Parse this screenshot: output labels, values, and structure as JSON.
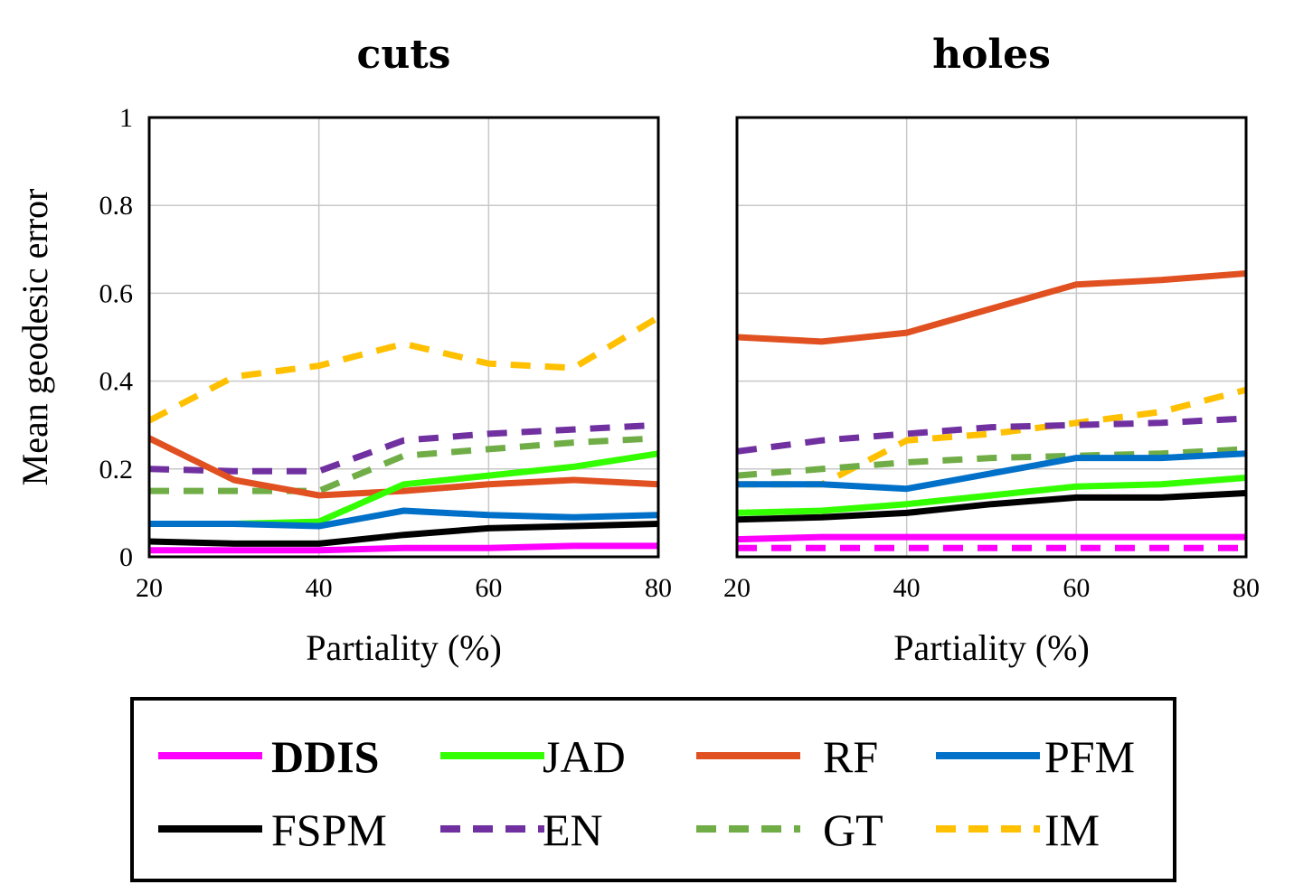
{
  "colors": {
    "DDIS": "#ff00ff",
    "JAD": "#33ff00",
    "RF": "#e05020",
    "PFM": "#0070c8",
    "FSPM": "#000000",
    "EN": "#7030a0",
    "GT": "#70ad47",
    "IM": "#ffc000"
  },
  "legend": {
    "items": [
      {
        "key": "DDIS",
        "label": "DDIS",
        "dashed": false,
        "bold": true
      },
      {
        "key": "JAD",
        "label": "JAD",
        "dashed": false,
        "bold": false
      },
      {
        "key": "RF",
        "label": "RF",
        "dashed": false,
        "bold": false
      },
      {
        "key": "PFM",
        "label": "PFM",
        "dashed": false,
        "bold": false
      },
      {
        "key": "FSPM",
        "label": "FSPM",
        "dashed": false,
        "bold": false
      },
      {
        "key": "EN",
        "label": "EN",
        "dashed": true,
        "bold": false
      },
      {
        "key": "GT",
        "label": "GT",
        "dashed": true,
        "bold": false
      },
      {
        "key": "IM",
        "label": "IM",
        "dashed": true,
        "bold": false
      }
    ]
  },
  "chart_data": [
    {
      "type": "line",
      "title": "cuts",
      "xlabel": "Partiality (%)",
      "ylabel": "Mean geodesic error",
      "xlim": [
        20,
        80
      ],
      "ylim": [
        0,
        1
      ],
      "xticks": [
        "20",
        "40",
        "60",
        "80"
      ],
      "yticks": [
        "0",
        "0.2",
        "0.4",
        "0.6",
        "0.8",
        "1"
      ],
      "grid": true,
      "x": [
        20,
        30,
        40,
        50,
        60,
        70,
        80
      ],
      "series": [
        {
          "name": "IM",
          "dashed": true,
          "values": [
            0.31,
            0.41,
            0.435,
            0.485,
            0.44,
            0.43,
            0.545
          ]
        },
        {
          "name": "EN",
          "dashed": true,
          "values": [
            0.2,
            0.195,
            0.195,
            0.265,
            0.28,
            0.29,
            0.3
          ]
        },
        {
          "name": "GT",
          "dashed": true,
          "values": [
            0.15,
            0.15,
            0.15,
            0.23,
            0.245,
            0.26,
            0.27
          ]
        },
        {
          "name": "RF",
          "dashed": false,
          "values": [
            0.27,
            0.175,
            0.14,
            0.15,
            0.165,
            0.175,
            0.165
          ]
        },
        {
          "name": "JAD",
          "dashed": false,
          "values": [
            0.075,
            0.075,
            0.08,
            0.165,
            0.185,
            0.205,
            0.235
          ]
        },
        {
          "name": "PFM",
          "dashed": false,
          "values": [
            0.075,
            0.075,
            0.07,
            0.105,
            0.095,
            0.09,
            0.095
          ]
        },
        {
          "name": "FSPM",
          "dashed": false,
          "values": [
            0.035,
            0.03,
            0.03,
            0.05,
            0.065,
            0.07,
            0.075
          ]
        },
        {
          "name": "DDIS",
          "dashed": false,
          "values": [
            0.015,
            0.015,
            0.015,
            0.02,
            0.02,
            0.025,
            0.025
          ]
        }
      ]
    },
    {
      "type": "line",
      "title": "holes",
      "xlabel": "Partiality (%)",
      "ylabel": "",
      "xlim": [
        20,
        80
      ],
      "ylim": [
        0,
        1
      ],
      "xticks": [
        "20",
        "40",
        "60",
        "80"
      ],
      "yticks": [],
      "grid": true,
      "x": [
        20,
        30,
        40,
        50,
        60,
        70,
        80
      ],
      "series": [
        {
          "name": "RF",
          "dashed": false,
          "values": [
            0.5,
            0.49,
            0.51,
            0.565,
            0.62,
            0.63,
            0.645
          ]
        },
        {
          "name": "IM",
          "dashed": true,
          "values": [
            0.165,
            0.165,
            0.265,
            0.28,
            0.305,
            0.33,
            0.38
          ]
        },
        {
          "name": "EN",
          "dashed": true,
          "values": [
            0.24,
            0.265,
            0.28,
            0.295,
            0.3,
            0.305,
            0.315
          ]
        },
        {
          "name": "GT",
          "dashed": true,
          "values": [
            0.185,
            0.2,
            0.215,
            0.225,
            0.23,
            0.235,
            0.245
          ]
        },
        {
          "name": "PFM",
          "dashed": false,
          "values": [
            0.165,
            0.165,
            0.155,
            0.19,
            0.225,
            0.225,
            0.235
          ]
        },
        {
          "name": "JAD",
          "dashed": false,
          "values": [
            0.1,
            0.105,
            0.12,
            0.14,
            0.16,
            0.165,
            0.18
          ]
        },
        {
          "name": "FSPM",
          "dashed": false,
          "values": [
            0.085,
            0.09,
            0.1,
            0.12,
            0.135,
            0.135,
            0.145
          ]
        },
        {
          "name": "DDIS",
          "dashed": false,
          "values": [
            0.04,
            0.045,
            0.045,
            0.045,
            0.045,
            0.045,
            0.045
          ]
        },
        {
          "name": "DDIS",
          "dashed": true,
          "values": [
            0.02,
            0.02,
            0.02,
            0.02,
            0.02,
            0.02,
            0.02
          ]
        }
      ]
    }
  ]
}
